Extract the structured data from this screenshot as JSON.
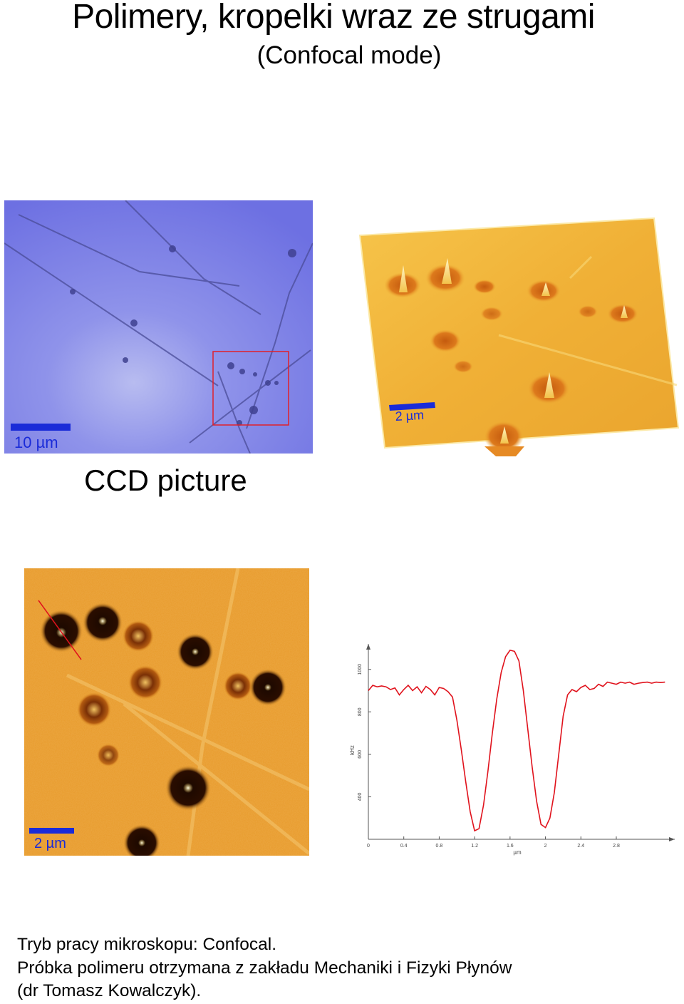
{
  "header": {
    "title": "Polimery, kropelki wraz ze strugami",
    "subtitle": "(Confocal mode)"
  },
  "ccd": {
    "scale_label": "10 µm",
    "caption": "CCD picture"
  },
  "topo3d": {
    "scale_label": "2 µm"
  },
  "confocal": {
    "scale_label": "2 µm"
  },
  "colors": {
    "ccd_bg": "#7b7ee6",
    "scale_bar": "#1a2bd8",
    "roi_box": "#e0202a",
    "topo": "#f2b235",
    "confocal": "#e89a2a",
    "profile_line": "#e0121c"
  },
  "profile": {
    "ylabel": "kHz",
    "xlabel": "µm",
    "y_ticks": [
      "400",
      "600",
      "800",
      "1000"
    ],
    "x_ticks": [
      "0",
      "0.4",
      "0.8",
      "1.2",
      "1.6",
      "2",
      "2.4",
      "2.8"
    ]
  },
  "chart_data": {
    "type": "line",
    "xlabel": "µm",
    "ylabel": "kHz",
    "xlim": [
      0,
      3.46
    ],
    "ylim": [
      200,
      1120
    ],
    "series": [
      {
        "x": [
          0,
          0.05,
          0.1,
          0.15,
          0.2,
          0.25,
          0.3,
          0.35,
          0.4,
          0.45,
          0.5,
          0.55,
          0.6,
          0.65,
          0.7,
          0.75,
          0.8,
          0.85,
          0.9,
          0.95,
          1.0,
          1.05,
          1.1,
          1.15,
          1.2,
          1.25,
          1.3,
          1.35,
          1.4,
          1.45,
          1.5,
          1.55,
          1.6,
          1.65,
          1.7,
          1.75,
          1.8,
          1.85,
          1.9,
          1.95,
          2.0,
          2.05,
          2.1,
          2.15,
          2.2,
          2.25,
          2.3,
          2.35,
          2.4,
          2.45,
          2.5,
          2.55,
          2.6,
          2.65,
          2.7,
          2.75,
          2.8,
          2.85,
          2.9,
          2.95,
          3.0,
          3.05,
          3.1,
          3.15,
          3.2,
          3.25,
          3.3,
          3.35
        ],
        "y": [
          900,
          925,
          918,
          922,
          918,
          905,
          913,
          880,
          905,
          925,
          900,
          918,
          890,
          920,
          905,
          880,
          915,
          910,
          895,
          870,
          760,
          620,
          470,
          330,
          240,
          250,
          360,
          520,
          700,
          860,
          985,
          1060,
          1090,
          1085,
          1040,
          900,
          720,
          540,
          380,
          270,
          255,
          300,
          420,
          600,
          780,
          880,
          905,
          895,
          915,
          925,
          905,
          910,
          930,
          920,
          940,
          935,
          930,
          940,
          935,
          940,
          930,
          935,
          938,
          940,
          935,
          940,
          938,
          940
        ]
      }
    ]
  }
}
